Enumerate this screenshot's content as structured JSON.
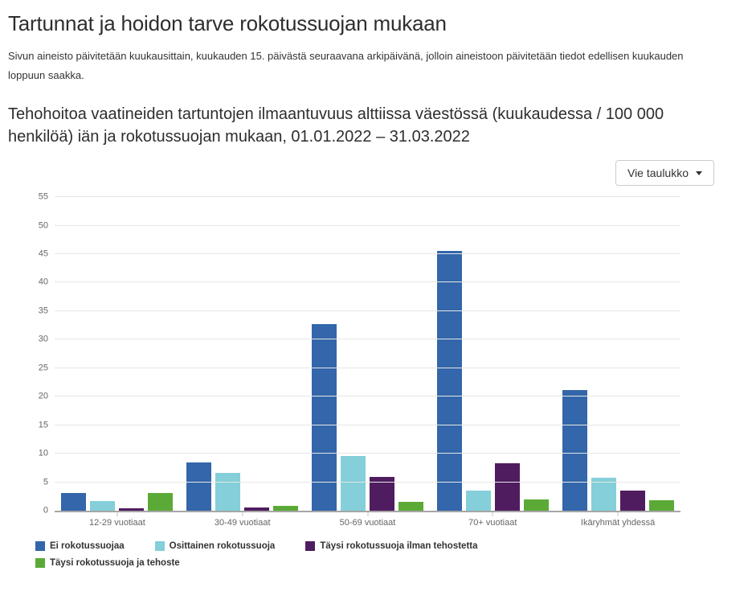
{
  "page": {
    "title": "Tartunnat ja hoidon tarve rokotussuojan mukaan",
    "update_note": "Sivun aineisto päivitetään kuukausittain, kuukauden 15. päivästä seuraavana arkipäivänä, jolloin aineistoon päivitetään tiedot edellisen kuukauden loppuun saakka."
  },
  "toolbar": {
    "export_button_label": "Vie taulukko"
  },
  "chart_data": {
    "type": "bar",
    "title": "Tehohoitoa vaatineiden tartuntojen ilmaantuvuus alttiissa väestössä (kuukaudessa / 100 000 henkilöä) iän ja rokotussuojan mukaan, 01.01.2022 – 31.03.2022",
    "categories": [
      "12-29 vuotiaat",
      "30-49 vuotiaat",
      "50-69 vuotiaat",
      "70+ vuotiaat",
      "Ikäryhmät yhdessä"
    ],
    "series": [
      {
        "name": "Ei rokotussuojaa",
        "color": "#3366aa",
        "values": [
          3.1,
          8.5,
          32.7,
          45.6,
          21.2
        ]
      },
      {
        "name": "Osittainen rokotussuoja",
        "color": "#84cfd9",
        "values": [
          1.7,
          6.7,
          9.6,
          3.5,
          5.8
        ]
      },
      {
        "name": "Täysi rokotussuoja ilman tehostetta",
        "color": "#4f1c5f",
        "values": [
          0.4,
          0.6,
          5.9,
          8.3,
          3.5
        ]
      },
      {
        "name": "Täysi rokotussuoja ja tehoste",
        "color": "#5baa38",
        "values": [
          3.1,
          0.9,
          1.6,
          2.0,
          1.9
        ]
      }
    ],
    "xlabel": "",
    "ylabel": "",
    "ylim": [
      0,
      55
    ],
    "ytick_step": 5,
    "grid": true,
    "legend_position": "bottom-left",
    "colors": {
      "grid_line": "#e6e6e6",
      "axis_line": "#a6a6a6",
      "axis_text": "#666666"
    }
  }
}
